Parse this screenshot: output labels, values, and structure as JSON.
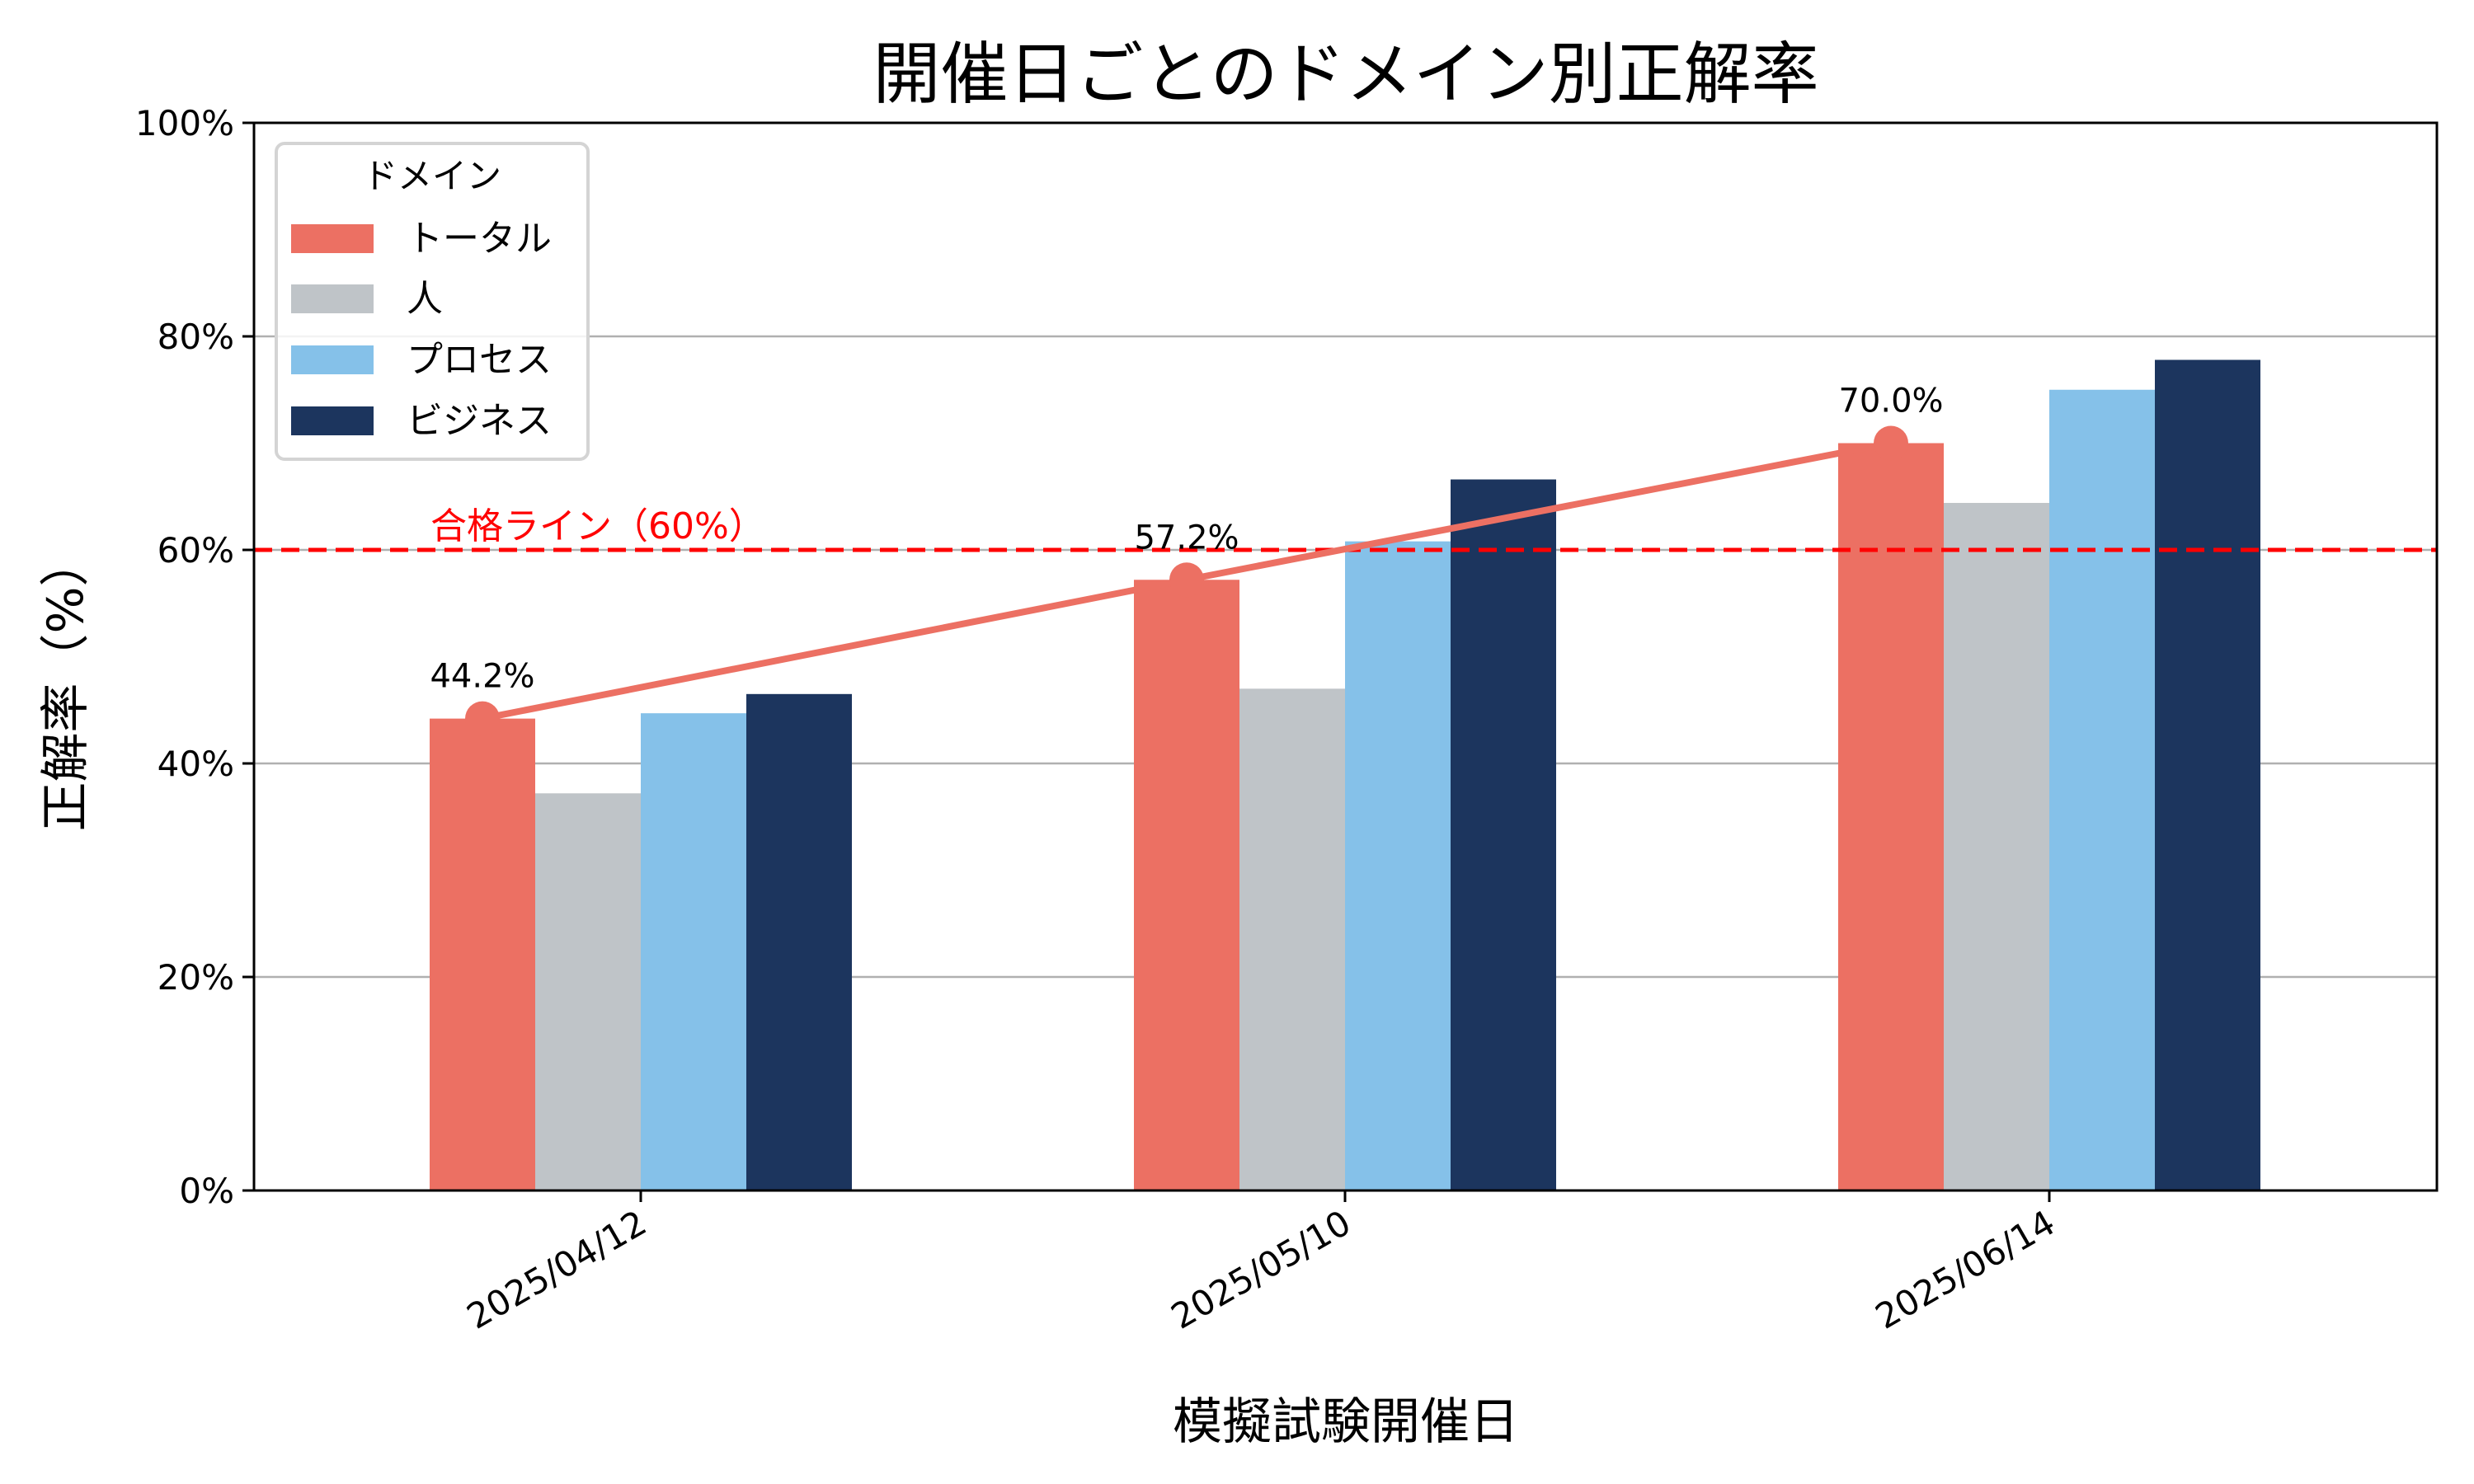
{
  "chart_data": {
    "type": "bar",
    "title": "開催日ごとのドメイン別正解率",
    "xlabel": "模擬試験開催日",
    "ylabel": "正解率（%）",
    "ylim": [
      0,
      100
    ],
    "yticks": [
      0,
      20,
      40,
      60,
      80,
      100
    ],
    "ytick_labels": [
      "0%",
      "20%",
      "40%",
      "60%",
      "80%",
      "100%"
    ],
    "grid": "y",
    "categories": [
      "2025/04/12",
      "2025/05/10",
      "2025/06/14"
    ],
    "series": [
      {
        "name": "トータル",
        "color": "#EC7063",
        "values": [
          44.2,
          57.2,
          70.0
        ]
      },
      {
        "name": "人",
        "color": "#BFC4C8",
        "values": [
          37.2,
          47.0,
          64.4
        ]
      },
      {
        "name": "プロセス",
        "color": "#85C1E9",
        "values": [
          44.7,
          60.8,
          75.0
        ]
      },
      {
        "name": "ビジネス",
        "color": "#1C355E",
        "values": [
          46.5,
          66.6,
          77.8
        ]
      }
    ],
    "trend_line": {
      "series": "トータル",
      "color": "#EC7063",
      "values": [
        44.2,
        57.2,
        70.0
      ],
      "labels": [
        "44.2%",
        "57.2%",
        "70.0%"
      ]
    },
    "reference_line": {
      "value": 60,
      "label": "合格ライン（60%）",
      "color": "#FF0000",
      "style": "dashed"
    },
    "legend": {
      "title": "ドメイン",
      "placement": "top-left"
    }
  }
}
